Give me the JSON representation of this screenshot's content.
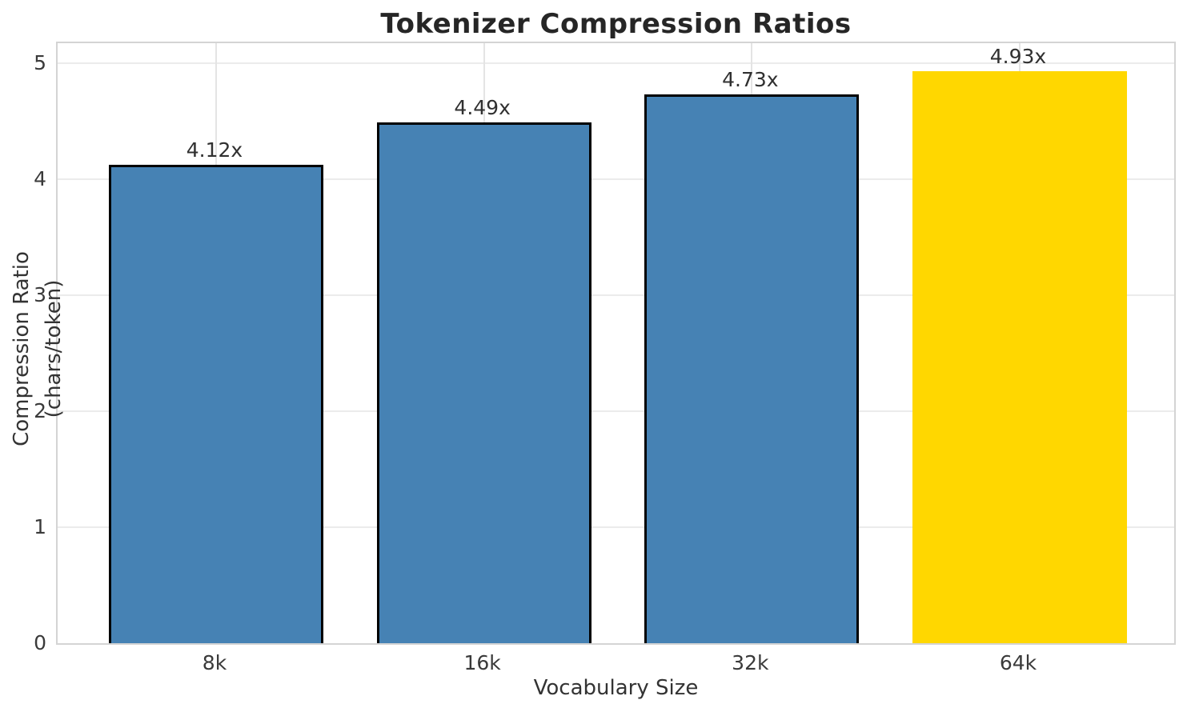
{
  "chart_data": {
    "type": "bar",
    "title": "Tokenizer Compression Ratios",
    "xlabel": "Vocabulary Size",
    "ylabel": "Compression Ratio (chars/token)",
    "categories": [
      "8k",
      "16k",
      "32k",
      "64k"
    ],
    "values": [
      4.12,
      4.49,
      4.73,
      4.93
    ],
    "bar_labels": [
      "4.12x",
      "4.49x",
      "4.73x",
      "4.93x"
    ],
    "bar_colors": [
      "#4682b4",
      "#4682b4",
      "#4682b4",
      "#ffd700"
    ],
    "bar_edge_colors": [
      "#000000",
      "#000000",
      "#000000",
      "none"
    ],
    "default_bar_color": "#4682b4",
    "highlight_bar_color": "#ffd700",
    "yticks": [
      "0",
      "1",
      "2",
      "3",
      "4",
      "5"
    ],
    "ytick_values": [
      0,
      1,
      2,
      3,
      4,
      5
    ],
    "ylim": [
      0,
      5.17
    ],
    "grid": true,
    "legend": false
  }
}
